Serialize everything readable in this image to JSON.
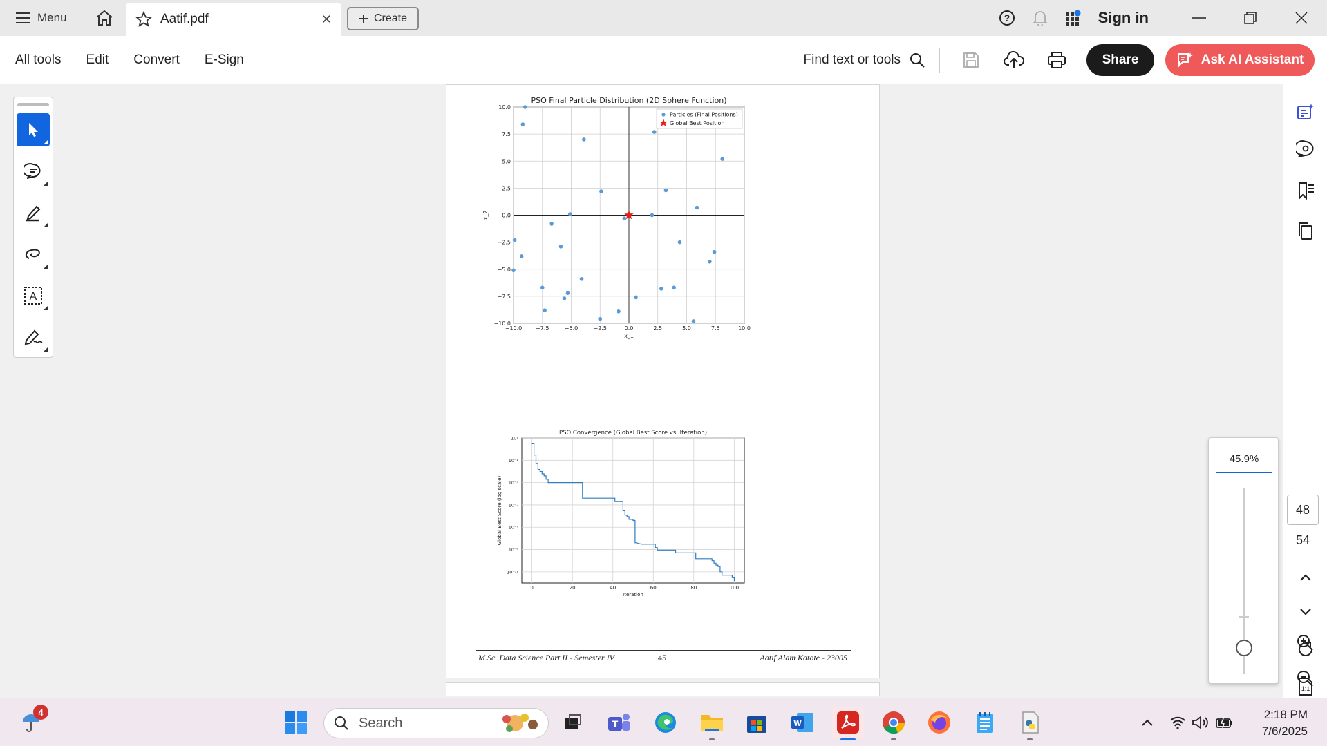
{
  "titlebar": {
    "menu_label": "Menu",
    "tab_title": "Aatif.pdf",
    "create_label": "Create",
    "sign_in": "Sign in"
  },
  "toolbar": {
    "items": [
      "All tools",
      "Edit",
      "Convert",
      "E-Sign"
    ],
    "find_label": "Find text or tools",
    "share_label": "Share",
    "ai_label": "Ask AI Assistant"
  },
  "document": {
    "footer_left": "M.Sc. Data Science Part II - Semester IV",
    "page_number": "45",
    "footer_right": "Aatif Alam Katote - 23005"
  },
  "navigation": {
    "current_page": "48",
    "total_pages": "54",
    "zoom": "45.9%"
  },
  "taskbar": {
    "search_placeholder": "Search",
    "notification_count": "4",
    "time": "2:18 PM",
    "date": "7/6/2025"
  },
  "colors": {
    "accent": "#1166e0",
    "ai_button": "#f0595a",
    "scatter_point": "#5b9bd5",
    "best_marker": "#e0201b",
    "line_series": "#2e7dc0"
  },
  "chart_data": [
    {
      "type": "scatter",
      "title": "PSO Final Particle Distribution (2D Sphere Function)",
      "xlabel": "x_1",
      "ylabel": "x_2",
      "xlim": [
        -10,
        10
      ],
      "ylim": [
        -10,
        10
      ],
      "xticks": [
        "−10.0",
        "−7.5",
        "−5.0",
        "−2.5",
        "0.0",
        "2.5",
        "5.0",
        "7.5",
        "10.0"
      ],
      "yticks": [
        "10.0",
        "7.5",
        "5.0",
        "2.5",
        "0.0",
        "−2.5",
        "−5.0",
        "−7.5",
        "−10.0"
      ],
      "grid": true,
      "legend_position": "top-right",
      "series": [
        {
          "name": "Particles (Final Positions)",
          "points": [
            [
              -9.0,
              10.0
            ],
            [
              -9.2,
              8.4
            ],
            [
              -3.9,
              7.0
            ],
            [
              -2.4,
              2.2
            ],
            [
              -5.1,
              0.1
            ],
            [
              -6.7,
              -0.8
            ],
            [
              -5.9,
              -2.9
            ],
            [
              -9.9,
              -2.3
            ],
            [
              -9.3,
              -3.8
            ],
            [
              -10.0,
              -5.1
            ],
            [
              -7.5,
              -6.7
            ],
            [
              -7.3,
              -8.8
            ],
            [
              -5.6,
              -7.7
            ],
            [
              -5.3,
              -7.2
            ],
            [
              -4.1,
              -5.9
            ],
            [
              -2.5,
              -9.6
            ],
            [
              -0.9,
              -8.9
            ],
            [
              -0.4,
              -0.3
            ],
            [
              0.6,
              -7.6
            ],
            [
              2.0,
              0.0
            ],
            [
              2.2,
              7.7
            ],
            [
              3.2,
              2.3
            ],
            [
              2.8,
              -6.8
            ],
            [
              3.9,
              -6.7
            ],
            [
              4.4,
              -2.5
            ],
            [
              5.6,
              -9.8
            ],
            [
              5.9,
              0.7
            ],
            [
              7.0,
              -4.3
            ],
            [
              7.4,
              -3.4
            ],
            [
              8.1,
              5.2
            ]
          ]
        },
        {
          "name": "Global Best Position",
          "points": [
            [
              0.0,
              0.0
            ]
          ]
        }
      ]
    },
    {
      "type": "line",
      "title": "PSO Convergence (Global Best Score vs. Iteration)",
      "xlabel": "Iteration",
      "ylabel": "Global Best Score (log scale)",
      "xlim": [
        -5,
        105
      ],
      "xticks": [
        "0",
        "20",
        "40",
        "60",
        "80",
        "100"
      ],
      "yscale": "log",
      "yticks": [
        "10¹",
        "10⁻¹",
        "10⁻³",
        "10⁻⁵",
        "10⁻⁷",
        "10⁻⁹",
        "10⁻¹¹"
      ],
      "ylim": [
        1e-12,
        10
      ],
      "grid": true,
      "series": [
        {
          "x": [
            0,
            1,
            2,
            3,
            4,
            5,
            6,
            7,
            8,
            9,
            24,
            25,
            40,
            41,
            44,
            45,
            46,
            47,
            48,
            49,
            50,
            51,
            52,
            53,
            54,
            60,
            61,
            62,
            70,
            71,
            80,
            81,
            88,
            89,
            90,
            91,
            92,
            93,
            94,
            95,
            98,
            99,
            100
          ],
          "y": [
            3,
            0.3,
            0.05,
            0.015,
            0.01,
            0.006,
            0.004,
            0.002,
            0.001,
            0.001,
            0.001,
            4e-05,
            4e-05,
            2e-05,
            2e-05,
            3e-06,
            1.2e-06,
            9e-07,
            5e-07,
            5e-07,
            4e-07,
            4e-09,
            3.5e-09,
            3.2e-09,
            3e-09,
            3e-09,
            1.5e-09,
            9e-10,
            9e-10,
            5e-10,
            5e-10,
            1.5e-10,
            1.5e-10,
            1e-10,
            6e-11,
            4e-11,
            3e-11,
            1e-11,
            5e-12,
            5e-12,
            5e-12,
            3e-12,
            1.5e-12
          ]
        }
      ]
    }
  ]
}
